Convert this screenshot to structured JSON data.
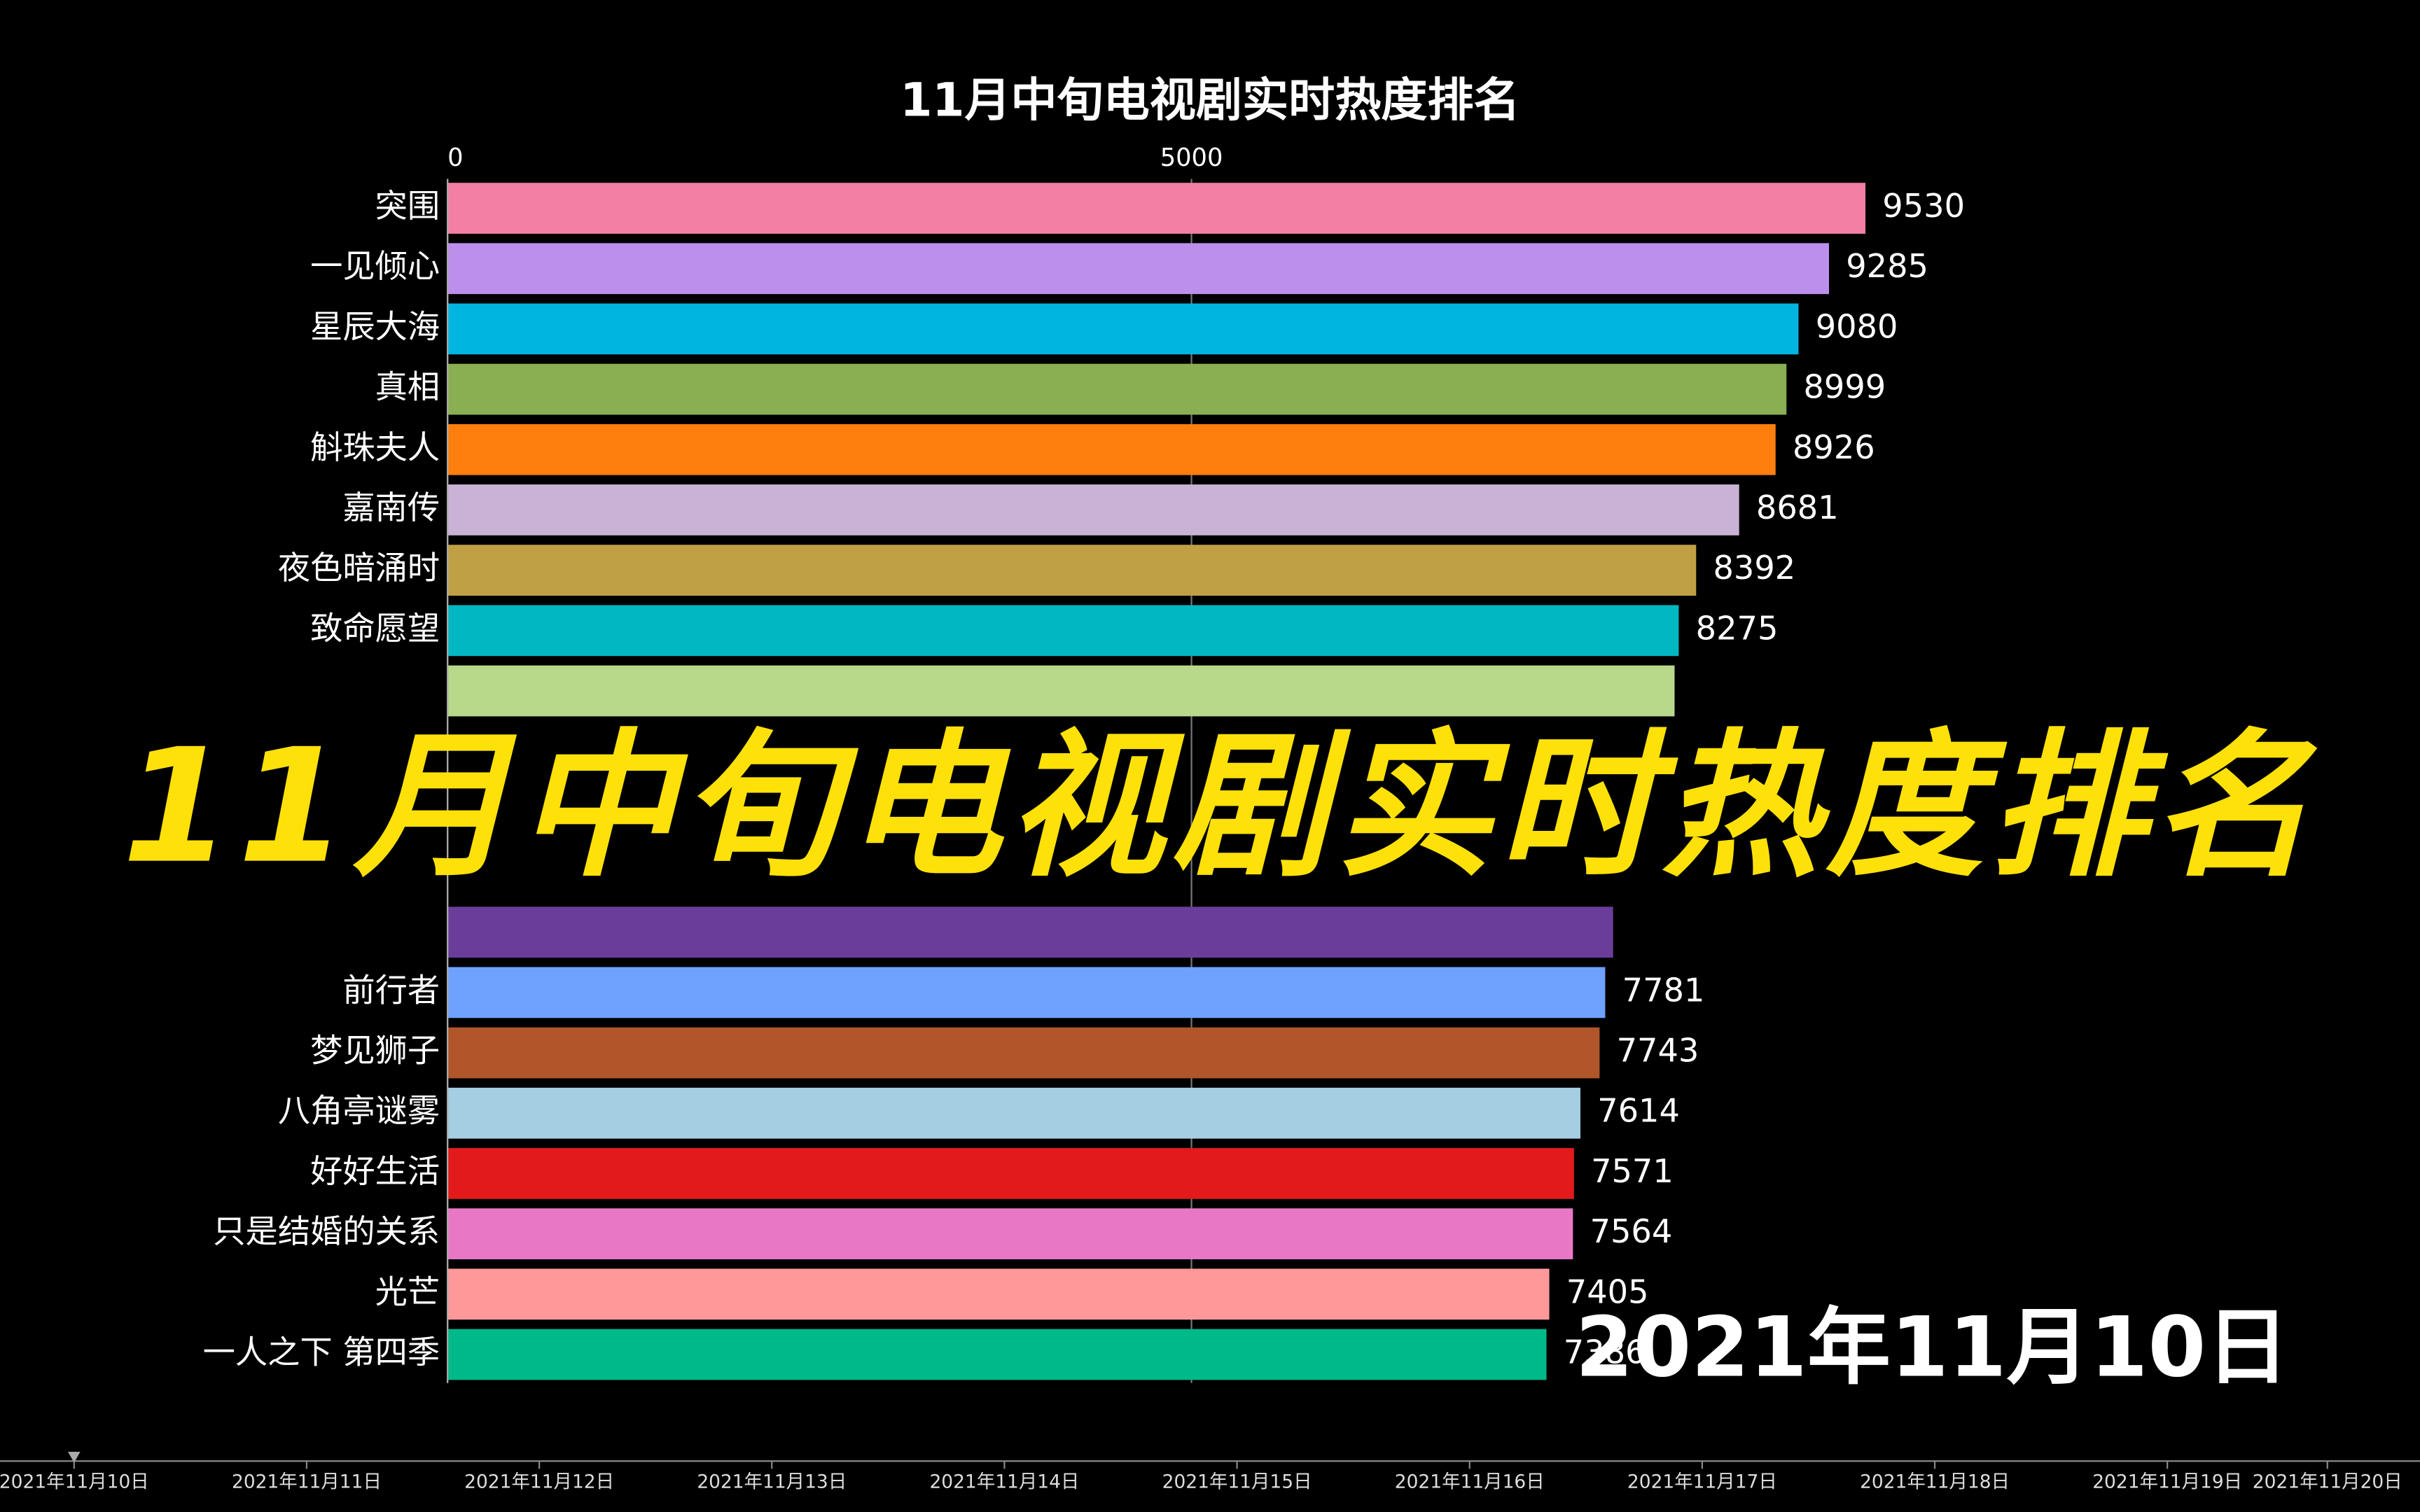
{
  "chart_data": {
    "type": "bar",
    "orientation": "horizontal",
    "title": "11月中旬电视剧实时热度排名",
    "overlay_title": "11月中旬电视剧实时热度排名",
    "date_label": "2021年11月10日",
    "categories": [
      "突围",
      "一见倾心",
      "星辰大海",
      "真相",
      "斛珠夫人",
      "嘉南传",
      "夜色暗涌时",
      "致命愿望",
      null,
      null,
      null,
      null,
      null,
      "前行者",
      "梦见狮子",
      "八角亭谜雾",
      "好好生活",
      "只是结婚的关系",
      "光芒",
      "一人之下 第四季"
    ],
    "values": [
      9530,
      9285,
      9080,
      8999,
      8926,
      8681,
      8392,
      8275,
      8247,
      null,
      null,
      null,
      7834,
      7781,
      7743,
      7614,
      7571,
      7564,
      7405,
      7386
    ],
    "value_labels": [
      "9530",
      "9285",
      "9080",
      "8999",
      "8926",
      "8681",
      "8392",
      "8275",
      null,
      null,
      null,
      null,
      null,
      "7781",
      "7743",
      "7614",
      "7571",
      "7564",
      "7405",
      "7386"
    ],
    "colors": [
      "#f47fa4",
      "#bd8fec",
      "#00b5e0",
      "#8aaf52",
      "#ff7f0e",
      "#c9b2d6",
      "#c0a045",
      "#00b7c2",
      "#b8d98a",
      null,
      null,
      null,
      "#6a3d9a",
      "#6fa1ff",
      "#b0562a",
      "#a6cee3",
      "#e31a1c",
      "#e878c6",
      "#ff9999",
      "#00b98a"
    ],
    "xlim": [
      0,
      10000
    ],
    "xticks": [
      0,
      5000
    ],
    "grid": true,
    "timeline": [
      "2021年11月10日",
      "2021年11月11日",
      "2021年11月12日",
      "2021年11月13日",
      "2021年11月14日",
      "2021年11月15日",
      "2021年11月16日",
      "2021年11月17日",
      "2021年11月18日",
      "2021年11月19日",
      "2021年11月20日"
    ]
  }
}
